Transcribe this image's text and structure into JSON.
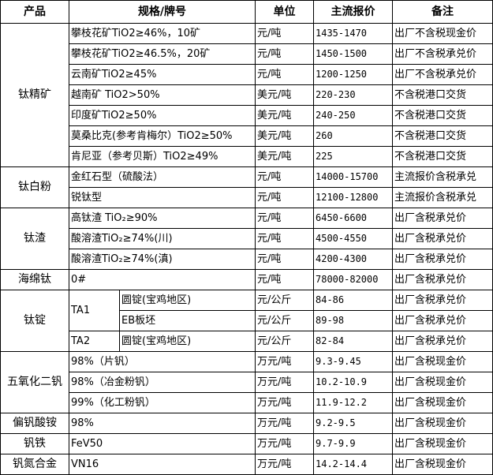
{
  "headers": [
    "产品",
    "规格/牌号",
    "单位",
    "主流报价",
    "备注"
  ],
  "groups": [
    {
      "product": "钛精矿",
      "rows": [
        {
          "spec": "攀枝花矿TiO2≥46%，10矿",
          "unit": "元/吨",
          "price": "1435-1470",
          "note": "出厂不含税现金价"
        },
        {
          "spec": "攀枝花矿TiO2≥46.5%，20矿",
          "unit": "元/吨",
          "price": "1450-1500",
          "note": "出厂不含税承兑价"
        },
        {
          "spec": "云南矿TiO2≥45%",
          "unit": "元/吨",
          "price": "1200-1250",
          "note": "出厂不含税承兑价"
        },
        {
          "spec": "越南矿 TiO2>50%",
          "unit": "美元/吨",
          "price": "220-230",
          "note": "不含税港口交货"
        },
        {
          "spec": "印度矿TiO2≥50%",
          "unit": "美元/吨",
          "price": "240-250",
          "note": "不含税港口交货"
        },
        {
          "spec": "莫桑比克(参考肯梅尔）TiO2≥50%",
          "unit": "美元/吨",
          "price": "260",
          "note": "不含税港口交货"
        },
        {
          "spec": "肯尼亚（参考贝斯）TiO2≥49%",
          "unit": "美元/吨",
          "price": "225",
          "note": "不含税港口交货"
        }
      ]
    },
    {
      "product": "钛白粉",
      "rows": [
        {
          "spec": "金红石型（硫酸法）",
          "unit": "元/吨",
          "price": "14000-15700",
          "note": "主流报价含税承兑"
        },
        {
          "spec": "锐钛型",
          "unit": "元/吨",
          "price": "12100-12800",
          "note": "主流报价含税承兑"
        }
      ]
    },
    {
      "product": "钛渣",
      "rows": [
        {
          "spec": "高钛渣 TiO₂≥90%",
          "unit": "元/吨",
          "price": "6450-6600",
          "note": "出厂含税承兑价"
        },
        {
          "spec": "酸溶渣TiO₂≥74%(川)",
          "unit": "元/吨",
          "price": "4500-4550",
          "note": "出厂含税承兑价"
        },
        {
          "spec": "酸溶渣TiO₂≥74%(滇)",
          "unit": "元/吨",
          "price": "4200-4300",
          "note": "出厂含税承兑价"
        }
      ]
    },
    {
      "product": "海绵钛",
      "rows": [
        {
          "spec": "0#",
          "unit": "元/吨",
          "price": "78000-82000",
          "note": "出厂含税承兑价"
        }
      ]
    },
    {
      "product": "钛锭",
      "subgroups": [
        {
          "grade": "TA1",
          "rows": [
            {
              "spec": "圆锭(宝鸡地区)",
              "unit": "元/公斤",
              "price": "84-86",
              "note": "出厂含税承兑价"
            },
            {
              "spec": "EB板坯",
              "unit": "元/公斤",
              "price": "89-98",
              "note": "出厂含税承兑价"
            }
          ]
        },
        {
          "grade": "TA2",
          "rows": [
            {
              "spec": "圆锭(宝鸡地区)",
              "unit": "元/公斤",
              "price": "82-84",
              "note": "出厂含税承兑价"
            }
          ]
        }
      ]
    },
    {
      "product": "五氧化二钒",
      "rows": [
        {
          "spec": "98%（片钒）",
          "unit": "万元/吨",
          "price": "9.3-9.45",
          "note": "出厂含税现金价"
        },
        {
          "spec": "98%（冶金粉钒）",
          "unit": "万元/吨",
          "price": "10.2-10.9",
          "note": "出厂含税现金价"
        },
        {
          "spec": "99%（化工粉钒）",
          "unit": "万元/吨",
          "price": "11.9-12.2",
          "note": "出厂含税现金价"
        }
      ]
    },
    {
      "product": "偏钒酸铵",
      "rows": [
        {
          "spec": "98%",
          "unit": "万元/吨",
          "price": "9.2-9.5",
          "note": "出厂含税现金价"
        }
      ]
    },
    {
      "product": "钒铁",
      "rows": [
        {
          "spec": "FeV50",
          "unit": "万元/吨",
          "price": "9.7-9.9",
          "note": "出厂含税现金价"
        }
      ]
    },
    {
      "product": "钒氮合金",
      "rows": [
        {
          "spec": "VN16",
          "unit": "万元/吨",
          "price": "14.2-14.4",
          "note": "出厂含税现金价"
        }
      ]
    }
  ]
}
